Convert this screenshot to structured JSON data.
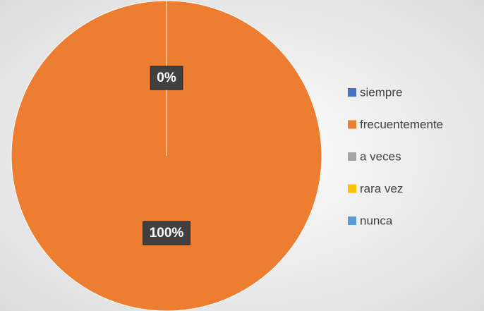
{
  "chart_data": {
    "type": "pie",
    "categories": [
      "siempre",
      "frecuentemente",
      "a veces",
      "rara vez",
      "nunca"
    ],
    "values": [
      0,
      100,
      0,
      0,
      0
    ],
    "value_labels": [
      "0%",
      "100%",
      null,
      null,
      null
    ],
    "colors": [
      "#4472c4",
      "#ed7d31",
      "#a5a5a5",
      "#ffc000",
      "#5b9bd5"
    ],
    "legend": "right"
  }
}
